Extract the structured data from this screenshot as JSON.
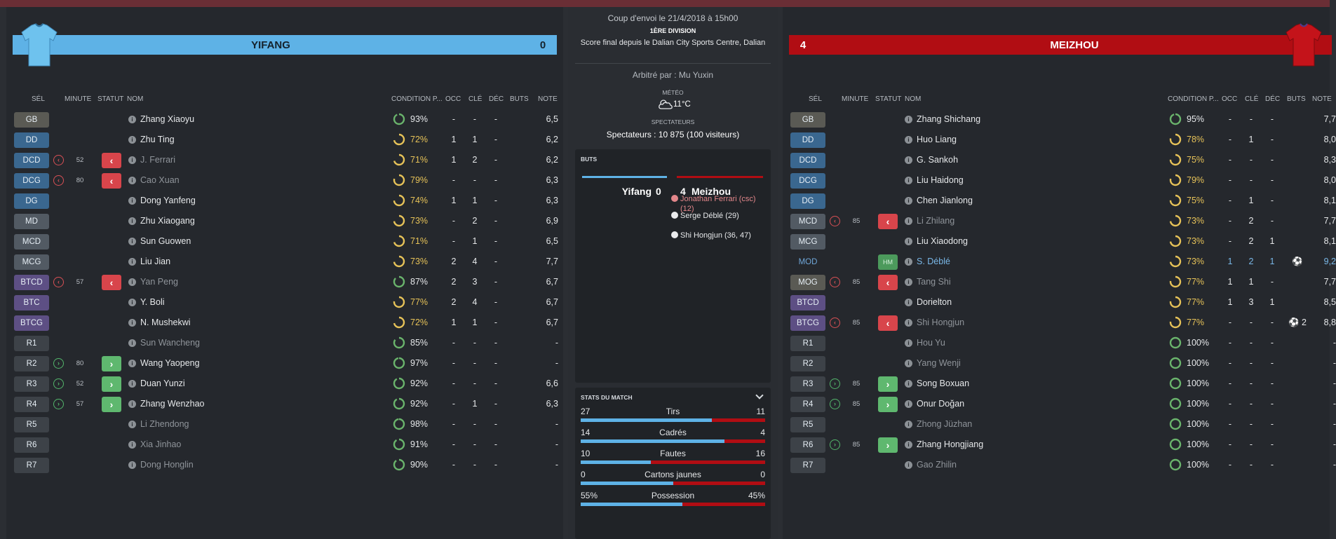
{
  "colors": {
    "home": "#5eb2e6",
    "away": "#b10d13",
    "condition_full": "#6ab46c",
    "condition_partial": "#e6c258"
  },
  "home": {
    "name": "YIFANG",
    "score": "0",
    "shirt_icon": "light-blue-shirt-icon",
    "headers": {
      "sel": "SÉL",
      "minute": "MINUTE",
      "statut": "STATUT",
      "nom": "NOM",
      "condition": "CONDITION P...",
      "occ": "OCC",
      "cle": "CLÉ",
      "dec": "DÉC",
      "buts": "BUTS",
      "note": "NOTE"
    },
    "players": [
      {
        "pos": "GB",
        "cat": "gk",
        "name": "Zhang Xiaoyu",
        "cond": "93%",
        "occ": "-",
        "cle": "-",
        "dec": "-",
        "buts": "",
        "note": "6,5"
      },
      {
        "pos": "DD",
        "cat": "def",
        "name": "Zhu Ting",
        "cond": "72%",
        "occ": "1",
        "cle": "1",
        "dec": "-",
        "buts": "",
        "note": "6,2"
      },
      {
        "pos": "DCD",
        "cat": "def",
        "name": "J. Ferrari",
        "cond": "71%",
        "occ": "1",
        "cle": "2",
        "dec": "-",
        "buts": "",
        "note": "6,2",
        "ev": "off",
        "min": "52",
        "status": "out",
        "dim": true
      },
      {
        "pos": "DCG",
        "cat": "def",
        "name": "Cao Xuan",
        "cond": "79%",
        "occ": "-",
        "cle": "-",
        "dec": "-",
        "buts": "",
        "note": "6,3",
        "ev": "off",
        "min": "80",
        "status": "out",
        "dim": true
      },
      {
        "pos": "DG",
        "cat": "def",
        "name": "Dong Yanfeng",
        "cond": "74%",
        "occ": "1",
        "cle": "1",
        "dec": "-",
        "buts": "",
        "note": "6,3"
      },
      {
        "pos": "MD",
        "cat": "mid",
        "name": "Zhu Xiaogang",
        "cond": "73%",
        "occ": "-",
        "cle": "2",
        "dec": "-",
        "buts": "",
        "note": "6,9"
      },
      {
        "pos": "MCD",
        "cat": "mid",
        "name": "Sun Guowen",
        "cond": "71%",
        "occ": "-",
        "cle": "1",
        "dec": "-",
        "buts": "",
        "note": "6,5"
      },
      {
        "pos": "MCG",
        "cat": "mid",
        "name": "Liu Jian",
        "cond": "73%",
        "occ": "2",
        "cle": "4",
        "dec": "-",
        "buts": "",
        "note": "7,7"
      },
      {
        "pos": "BTCD",
        "cat": "att",
        "name": "Yan Peng",
        "cond": "87%",
        "occ": "2",
        "cle": "3",
        "dec": "-",
        "buts": "",
        "note": "6,7",
        "ev": "off",
        "min": "57",
        "status": "out",
        "dim": true
      },
      {
        "pos": "BTC",
        "cat": "att",
        "name": "Y. Boli",
        "cond": "77%",
        "occ": "2",
        "cle": "4",
        "dec": "-",
        "buts": "",
        "note": "6,7"
      },
      {
        "pos": "BTCG",
        "cat": "att",
        "name": "N. Mushekwi",
        "cond": "72%",
        "occ": "1",
        "cle": "1",
        "dec": "-",
        "buts": "",
        "note": "6,7"
      },
      {
        "pos": "R1",
        "cat": "sub",
        "name": "Sun Wancheng",
        "cond": "85%",
        "occ": "-",
        "cle": "-",
        "dec": "-",
        "buts": "",
        "note": "-",
        "dim": true
      },
      {
        "pos": "R2",
        "cat": "sub",
        "name": "Wang Yaopeng",
        "cond": "97%",
        "occ": "-",
        "cle": "-",
        "dec": "-",
        "buts": "",
        "note": "-",
        "ev": "on",
        "min": "80",
        "status": "in"
      },
      {
        "pos": "R3",
        "cat": "sub",
        "name": "Duan Yunzi",
        "cond": "92%",
        "occ": "-",
        "cle": "-",
        "dec": "-",
        "buts": "",
        "note": "6,6",
        "ev": "on",
        "min": "52",
        "status": "in"
      },
      {
        "pos": "R4",
        "cat": "sub",
        "name": "Zhang Wenzhao",
        "cond": "92%",
        "occ": "-",
        "cle": "1",
        "dec": "-",
        "buts": "",
        "note": "6,3",
        "ev": "on",
        "min": "57",
        "status": "in"
      },
      {
        "pos": "R5",
        "cat": "sub",
        "name": "Li Zhendong",
        "cond": "98%",
        "occ": "-",
        "cle": "-",
        "dec": "-",
        "buts": "",
        "note": "-",
        "dim": true
      },
      {
        "pos": "R6",
        "cat": "sub",
        "name": "Xia Jinhao",
        "cond": "91%",
        "occ": "-",
        "cle": "-",
        "dec": "-",
        "buts": "",
        "note": "-",
        "dim": true
      },
      {
        "pos": "R7",
        "cat": "sub",
        "name": "Dong Honglin",
        "cond": "90%",
        "occ": "-",
        "cle": "-",
        "dec": "-",
        "buts": "",
        "note": "-",
        "dim": true
      }
    ]
  },
  "away": {
    "name": "MEIZHOU",
    "score": "4",
    "shirt_icon": "red-shirt-icon",
    "headers": {
      "sel": "SÉL",
      "minute": "MINUTE",
      "statut": "STATUT",
      "nom": "NOM",
      "condition": "CONDITION P...",
      "occ": "OCC",
      "cle": "CLÉ",
      "dec": "DÉC",
      "buts": "BUTS",
      "note": "NOTE"
    },
    "players": [
      {
        "pos": "GB",
        "cat": "gk",
        "name": "Zhang Shichang",
        "cond": "95%",
        "occ": "-",
        "cle": "-",
        "dec": "-",
        "buts": "",
        "note": "7,7"
      },
      {
        "pos": "DD",
        "cat": "def",
        "name": "Huo Liang",
        "cond": "78%",
        "occ": "-",
        "cle": "1",
        "dec": "-",
        "buts": "",
        "note": "8,0"
      },
      {
        "pos": "DCD",
        "cat": "def",
        "name": "G. Sankoh",
        "cond": "75%",
        "occ": "-",
        "cle": "-",
        "dec": "-",
        "buts": "",
        "note": "8,3"
      },
      {
        "pos": "DCG",
        "cat": "def",
        "name": "Liu Haidong",
        "cond": "79%",
        "occ": "-",
        "cle": "-",
        "dec": "-",
        "buts": "",
        "note": "8,0"
      },
      {
        "pos": "DG",
        "cat": "def",
        "name": "Chen Jianlong",
        "cond": "75%",
        "occ": "-",
        "cle": "1",
        "dec": "-",
        "buts": "",
        "note": "8,1"
      },
      {
        "pos": "MCD",
        "cat": "mid",
        "name": "Li Zhilang",
        "cond": "73%",
        "occ": "-",
        "cle": "2",
        "dec": "-",
        "buts": "",
        "note": "7,7",
        "ev": "off",
        "min": "85",
        "status": "out",
        "dim": true
      },
      {
        "pos": "MCG",
        "cat": "mid",
        "name": "Liu Xiaodong",
        "cond": "73%",
        "occ": "-",
        "cle": "2",
        "dec": "1",
        "buts": "",
        "note": "8,1"
      },
      {
        "pos": "MOD",
        "cat": "star",
        "name": "S. Déblé",
        "cond": "73%",
        "occ": "1",
        "cle": "2",
        "dec": "1",
        "buts": "⚽",
        "note": "9,2",
        "status": "hm",
        "status_text": "HM",
        "star": true
      },
      {
        "pos": "MOG",
        "cat": "gk",
        "name": "Tang Shi",
        "cond": "77%",
        "occ": "1",
        "cle": "1",
        "dec": "-",
        "buts": "",
        "note": "7,7",
        "ev": "off",
        "min": "85",
        "status": "out",
        "dim": true
      },
      {
        "pos": "BTCD",
        "cat": "att",
        "name": "Dorielton",
        "cond": "77%",
        "occ": "1",
        "cle": "3",
        "dec": "1",
        "buts": "",
        "note": "8,5"
      },
      {
        "pos": "BTCG",
        "cat": "att",
        "name": "Shi Hongjun",
        "cond": "77%",
        "occ": "-",
        "cle": "-",
        "dec": "-",
        "buts": "⚽ 2",
        "note": "8,8",
        "ev": "off",
        "min": "85",
        "status": "out",
        "dim": true
      },
      {
        "pos": "R1",
        "cat": "sub",
        "name": "Hou Yu",
        "cond": "100%",
        "occ": "-",
        "cle": "-",
        "dec": "-",
        "buts": "",
        "note": "-",
        "dim": true
      },
      {
        "pos": "R2",
        "cat": "sub",
        "name": "Yang Wenji",
        "cond": "100%",
        "occ": "-",
        "cle": "-",
        "dec": "-",
        "buts": "",
        "note": "-",
        "dim": true
      },
      {
        "pos": "R3",
        "cat": "sub",
        "name": "Song Boxuan",
        "cond": "100%",
        "occ": "-",
        "cle": "-",
        "dec": "-",
        "buts": "",
        "note": "-",
        "ev": "on",
        "min": "85",
        "status": "in"
      },
      {
        "pos": "R4",
        "cat": "sub",
        "name": "Onur Doğan",
        "cond": "100%",
        "occ": "-",
        "cle": "-",
        "dec": "-",
        "buts": "",
        "note": "-",
        "ev": "on",
        "min": "85",
        "status": "in"
      },
      {
        "pos": "R5",
        "cat": "sub",
        "name": "Zhong Jüzhan",
        "cond": "100%",
        "occ": "-",
        "cle": "-",
        "dec": "-",
        "buts": "",
        "note": "-",
        "dim": true
      },
      {
        "pos": "R6",
        "cat": "sub",
        "name": "Zhang Hongjiang",
        "cond": "100%",
        "occ": "-",
        "cle": "-",
        "dec": "-",
        "buts": "",
        "note": "-",
        "ev": "on",
        "min": "85",
        "status": "in"
      },
      {
        "pos": "R7",
        "cat": "sub",
        "name": "Gao Zhilin",
        "cond": "100%",
        "occ": "-",
        "cle": "-",
        "dec": "-",
        "buts": "",
        "note": "-",
        "dim": true
      }
    ]
  },
  "match": {
    "kickoff": "Coup d'envoi le 21/4/2018 à 15h00",
    "division": "1ÈRE DIVISION",
    "final_line": "Score final depuis le Dalian City Sports Centre, Dalian",
    "referee": "Arbitré par : Mu Yuxin",
    "meteo_label": "MÉTÉO",
    "weather_icon": "cloudy-icon",
    "temperature": "11°C",
    "spectators_label": "SPECTATEURS",
    "spectators": "Spectateurs : 10 875 (100 visiteurs)"
  },
  "goals": {
    "title": "BUTS",
    "home_name": "Yifang",
    "home_score": "0",
    "away_score": "4",
    "away_name": "Meizhou",
    "scorers": [
      {
        "text": "Jonathan Ferrari (csc) (12)",
        "own_goal": true
      },
      {
        "text": "Serge Déblé (29)",
        "own_goal": false
      },
      {
        "text": "Shi Hongjun (36, 47)",
        "own_goal": false
      }
    ]
  },
  "stats": {
    "title": "STATS DU MATCH",
    "rows": [
      {
        "label": "Tirs",
        "home": "27",
        "away": "11",
        "home_share": 0.71
      },
      {
        "label": "Cadrés",
        "home": "14",
        "away": "4",
        "home_share": 0.78
      },
      {
        "label": "Fautes",
        "home": "10",
        "away": "16",
        "home_share": 0.38
      },
      {
        "label": "Cartons jaunes",
        "home": "0",
        "away": "0",
        "home_share": 0.5
      },
      {
        "label": "Possession",
        "home": "55%",
        "away": "45%",
        "home_share": 0.55
      }
    ]
  }
}
